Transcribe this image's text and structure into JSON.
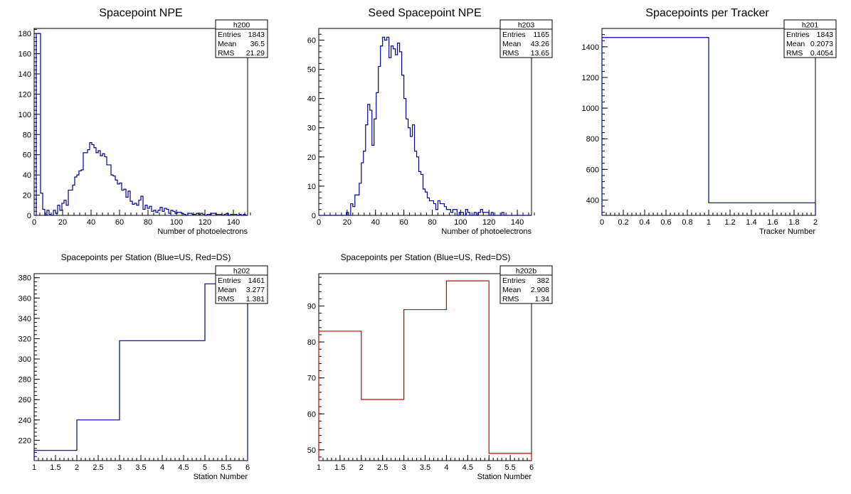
{
  "chart_data": [
    {
      "id": "h200",
      "type": "histogram",
      "title": "Spacepoint NPE",
      "xlabel": "Number of photoelectrons",
      "ylabel": "",
      "xlim": [
        0,
        150
      ],
      "ylim": [
        0,
        185
      ],
      "xticks": [
        0,
        20,
        40,
        60,
        80,
        100,
        120,
        140
      ],
      "yticks": [
        0,
        20,
        40,
        60,
        80,
        100,
        120,
        140,
        160,
        180
      ],
      "bin_width": 1.5,
      "color": "#000099",
      "stats": {
        "name": "h200",
        "rows": [
          [
            "Entries",
            "1843"
          ],
          [
            "Mean",
            "36.5"
          ],
          [
            "RMS",
            "21.29"
          ]
        ]
      },
      "values": [
        0,
        180,
        180,
        22,
        6,
        0,
        5,
        1,
        0,
        5,
        2,
        10,
        5,
        12,
        15,
        10,
        25,
        25,
        30,
        38,
        40,
        44,
        45,
        62,
        62,
        65,
        72,
        70,
        67,
        62,
        64,
        59,
        61,
        58,
        50,
        50,
        40,
        39,
        35,
        31,
        32,
        25,
        26,
        18,
        24,
        14,
        11,
        12,
        10,
        15,
        19,
        6,
        10,
        7,
        9,
        4,
        5,
        3,
        5,
        8,
        4,
        7,
        6,
        2,
        5,
        4,
        2,
        3,
        3,
        2,
        1,
        0,
        2,
        2,
        1,
        1,
        2,
        1,
        2,
        1,
        0,
        1,
        1,
        2,
        2,
        1,
        1,
        1,
        0,
        1,
        2,
        0,
        1,
        1,
        1,
        0,
        1,
        0,
        1,
        0
      ]
    },
    {
      "id": "h203",
      "type": "histogram",
      "title": "Seed Spacepoint NPE",
      "xlabel": "Number of photoelectrons",
      "ylabel": "",
      "xlim": [
        0,
        150
      ],
      "ylim": [
        0,
        64
      ],
      "xticks": [
        0,
        20,
        40,
        60,
        80,
        100,
        120,
        140
      ],
      "yticks": [
        0,
        10,
        20,
        30,
        40,
        50,
        60
      ],
      "bin_width": 1.5,
      "color": "#000099",
      "stats": {
        "name": "h203",
        "rows": [
          [
            "Entries",
            "1165"
          ],
          [
            "Mean",
            "43.26"
          ],
          [
            "RMS",
            "13.65"
          ]
        ]
      },
      "values": [
        0,
        0,
        0,
        0,
        0,
        0,
        0,
        0,
        0,
        0,
        0,
        0,
        0,
        1,
        0,
        4,
        3,
        7,
        7,
        11,
        18,
        22,
        31,
        38,
        36,
        24,
        33,
        42,
        51,
        58,
        61,
        60,
        61,
        54,
        58,
        57,
        55,
        59,
        56,
        48,
        40,
        33,
        30,
        27,
        31,
        22,
        20,
        15,
        14,
        9,
        8,
        6,
        5,
        5,
        4,
        2,
        5,
        4,
        4,
        3,
        2,
        2,
        1,
        2,
        2,
        0,
        1,
        1,
        0,
        2,
        1,
        0,
        0,
        1,
        0,
        1,
        2,
        1,
        1,
        1,
        0,
        1,
        0,
        0,
        0,
        0,
        1,
        0,
        0,
        0,
        0,
        0,
        0,
        0,
        0,
        0,
        0,
        0,
        0,
        0
      ]
    },
    {
      "id": "h201",
      "type": "histogram",
      "title": "Spacepoints per Tracker",
      "xlabel": "Tracker Number",
      "ylabel": "",
      "xlim": [
        0,
        2
      ],
      "ylim": [
        300,
        1520
      ],
      "xticks": [
        0,
        0.2,
        0.4,
        0.6,
        0.8,
        1,
        1.2,
        1.4,
        1.6,
        1.8,
        2
      ],
      "yticks": [
        400,
        600,
        800,
        1000,
        1200,
        1400
      ],
      "bin_edges": [
        0,
        1,
        2
      ],
      "color": "#000099",
      "stats": {
        "name": "h201",
        "rows": [
          [
            "Entries",
            "1843"
          ],
          [
            "Mean",
            "0.2073"
          ],
          [
            "RMS",
            "0.4054"
          ]
        ]
      },
      "values": [
        1461,
        382
      ]
    },
    {
      "id": "h202",
      "type": "histogram",
      "title": "Spacepoints per Station (Blue=US, Red=DS)",
      "xlabel": "Station Number",
      "ylabel": "",
      "xlim": [
        1,
        6
      ],
      "ylim": [
        200,
        384
      ],
      "xticks": [
        1,
        1.5,
        2,
        2.5,
        3,
        3.5,
        4,
        4.5,
        5,
        5.5,
        6
      ],
      "xtick_labels": [
        "1",
        "1.5",
        "2",
        "2.5",
        "3",
        "3.5",
        "4",
        "4.5",
        "5",
        "5.5",
        "6"
      ],
      "yticks": [
        220,
        240,
        260,
        280,
        300,
        320,
        340,
        360,
        380
      ],
      "bin_edges": [
        1,
        2,
        3,
        4,
        5,
        6
      ],
      "color": "#000099",
      "stats": {
        "name": "h202",
        "rows": [
          [
            "Entries",
            "1461"
          ],
          [
            "Mean",
            "3.277"
          ],
          [
            "RMS",
            "1.381"
          ]
        ]
      },
      "values": [
        210,
        240,
        318,
        318,
        374
      ]
    },
    {
      "id": "h202b",
      "type": "histogram",
      "title": "Spacepoints per Station (Blue=US, Red=DS)",
      "xlabel": "Station Number",
      "ylabel": "",
      "xlim": [
        1,
        6
      ],
      "ylim": [
        47,
        99
      ],
      "xticks": [
        1,
        1.5,
        2,
        2.5,
        3,
        3.5,
        4,
        4.5,
        5,
        5.5,
        6
      ],
      "xtick_labels": [
        "1",
        "1.5",
        "2",
        "2.5",
        "3",
        "3.5",
        "4",
        "4.5",
        "5",
        "5.5",
        "6"
      ],
      "yticks": [
        50,
        60,
        70,
        80,
        90
      ],
      "bin_edges": [
        1,
        2,
        3,
        4,
        5,
        6
      ],
      "color": "#cc0000",
      "stats": {
        "name": "h202b",
        "rows": [
          [
            "Entries",
            "382"
          ],
          [
            "Mean",
            "2.908"
          ],
          [
            "RMS",
            "1.34"
          ]
        ]
      },
      "values": [
        83,
        64,
        89,
        97,
        49
      ]
    }
  ]
}
